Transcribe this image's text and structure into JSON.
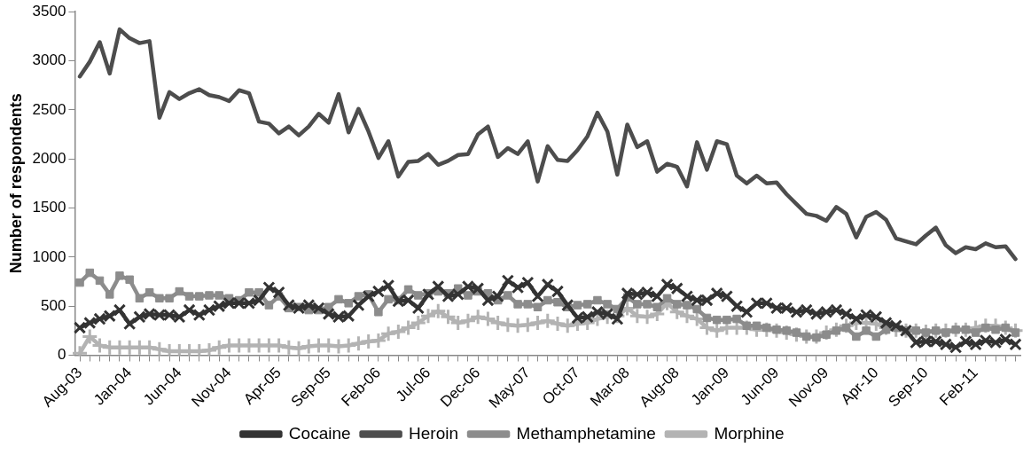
{
  "chart_data": {
    "type": "line",
    "ylabel": "Number of respondents",
    "categories": [
      "Aug-03",
      null,
      null,
      null,
      null,
      "Jan-04",
      null,
      null,
      null,
      null,
      "Jun-04",
      null,
      null,
      null,
      null,
      "Nov-04",
      null,
      null,
      null,
      null,
      "Apr-05",
      null,
      null,
      null,
      null,
      "Sep-05",
      null,
      null,
      null,
      null,
      "Feb-06",
      null,
      null,
      null,
      null,
      "Jul-06",
      null,
      null,
      null,
      null,
      "Dec-06",
      null,
      null,
      null,
      null,
      "May-07",
      null,
      null,
      null,
      null,
      "Oct-07",
      null,
      null,
      null,
      null,
      "Mar-08",
      null,
      null,
      null,
      null,
      "Aug-08",
      null,
      null,
      null,
      null,
      "Jan-09",
      null,
      null,
      null,
      null,
      "Jun-09",
      null,
      null,
      null,
      null,
      "Nov-09",
      null,
      null,
      null,
      null,
      "Apr-10",
      null,
      null,
      null,
      null,
      "Sep-10",
      null,
      null,
      null,
      null,
      "Feb-11",
      null,
      null,
      null,
      null
    ],
    "series": [
      {
        "name": "Cocaine",
        "color": "#333333",
        "marker": "x",
        "values": [
          280,
          330,
          370,
          400,
          460,
          320,
          390,
          420,
          410,
          410,
          390,
          460,
          410,
          460,
          500,
          530,
          530,
          530,
          560,
          690,
          640,
          510,
          480,
          510,
          480,
          420,
          390,
          400,
          510,
          600,
          650,
          710,
          550,
          560,
          480,
          620,
          700,
          600,
          620,
          700,
          680,
          560,
          600,
          760,
          690,
          740,
          600,
          720,
          650,
          510,
          380,
          390,
          440,
          420,
          370,
          630,
          620,
          640,
          600,
          720,
          680,
          600,
          560,
          560,
          630,
          600,
          500,
          440,
          530,
          530,
          480,
          480,
          440,
          460,
          420,
          440,
          460,
          420,
          370,
          410,
          390,
          330,
          300,
          250,
          130,
          140,
          140,
          110,
          80,
          140,
          110,
          150,
          130,
          160,
          110
        ]
      },
      {
        "name": "Heroin",
        "color": "#4d4d4d",
        "marker": "none",
        "values": [
          2840,
          2990,
          3190,
          2870,
          3320,
          3230,
          3180,
          3200,
          2420,
          2680,
          2610,
          2670,
          2710,
          2650,
          2630,
          2590,
          2700,
          2670,
          2380,
          2360,
          2260,
          2330,
          2240,
          2330,
          2460,
          2370,
          2660,
          2270,
          2510,
          2280,
          2010,
          2180,
          1820,
          1970,
          1980,
          2050,
          1940,
          1980,
          2040,
          2050,
          2250,
          2330,
          2020,
          2110,
          2050,
          2180,
          1770,
          2130,
          1990,
          1980,
          2090,
          2230,
          2470,
          2280,
          1840,
          2350,
          2120,
          2180,
          1870,
          1950,
          1920,
          1720,
          2170,
          1890,
          2180,
          2150,
          1830,
          1750,
          1830,
          1750,
          1760,
          1640,
          1540,
          1440,
          1420,
          1370,
          1510,
          1440,
          1200,
          1410,
          1460,
          1380,
          1190,
          1160,
          1130,
          1220,
          1300,
          1120,
          1040,
          1100,
          1080,
          1140,
          1100,
          1110,
          980
        ]
      },
      {
        "name": "Methamphetamine",
        "color": "#8c8c8c",
        "marker": "square",
        "values": [
          740,
          840,
          760,
          620,
          810,
          770,
          580,
          640,
          580,
          580,
          650,
          600,
          600,
          610,
          610,
          580,
          560,
          640,
          640,
          510,
          600,
          480,
          490,
          460,
          460,
          490,
          570,
          530,
          600,
          620,
          440,
          570,
          560,
          670,
          610,
          630,
          650,
          630,
          680,
          610,
          650,
          630,
          560,
          610,
          520,
          520,
          490,
          560,
          540,
          490,
          510,
          520,
          560,
          520,
          470,
          590,
          520,
          520,
          490,
          580,
          520,
          510,
          470,
          380,
          360,
          360,
          370,
          300,
          300,
          280,
          260,
          250,
          230,
          190,
          180,
          210,
          250,
          280,
          190,
          250,
          190,
          260,
          280,
          250,
          250,
          230,
          250,
          230,
          260,
          260,
          230,
          280,
          260,
          280,
          230
        ]
      },
      {
        "name": "Morphine",
        "color": "#b3b3b3",
        "marker": "cross",
        "values": [
          20,
          190,
          100,
          80,
          80,
          80,
          80,
          80,
          60,
          40,
          40,
          40,
          40,
          50,
          80,
          100,
          100,
          100,
          100,
          100,
          100,
          80,
          70,
          90,
          100,
          100,
          90,
          100,
          120,
          140,
          150,
          220,
          240,
          280,
          330,
          400,
          450,
          390,
          330,
          350,
          390,
          370,
          330,
          310,
          300,
          310,
          330,
          350,
          320,
          300,
          320,
          330,
          370,
          390,
          400,
          480,
          400,
          390,
          420,
          530,
          440,
          400,
          370,
          280,
          250,
          280,
          280,
          280,
          260,
          260,
          250,
          230,
          210,
          190,
          190,
          230,
          260,
          300,
          330,
          330,
          320,
          280,
          260,
          250,
          250,
          240,
          250,
          250,
          260,
          260,
          280,
          300,
          300,
          280,
          250
        ]
      }
    ],
    "ylim": [
      0,
      3500
    ],
    "yticks": [
      0,
      500,
      1000,
      1500,
      2000,
      2500,
      3000,
      3500
    ],
    "legend": "bottom"
  }
}
